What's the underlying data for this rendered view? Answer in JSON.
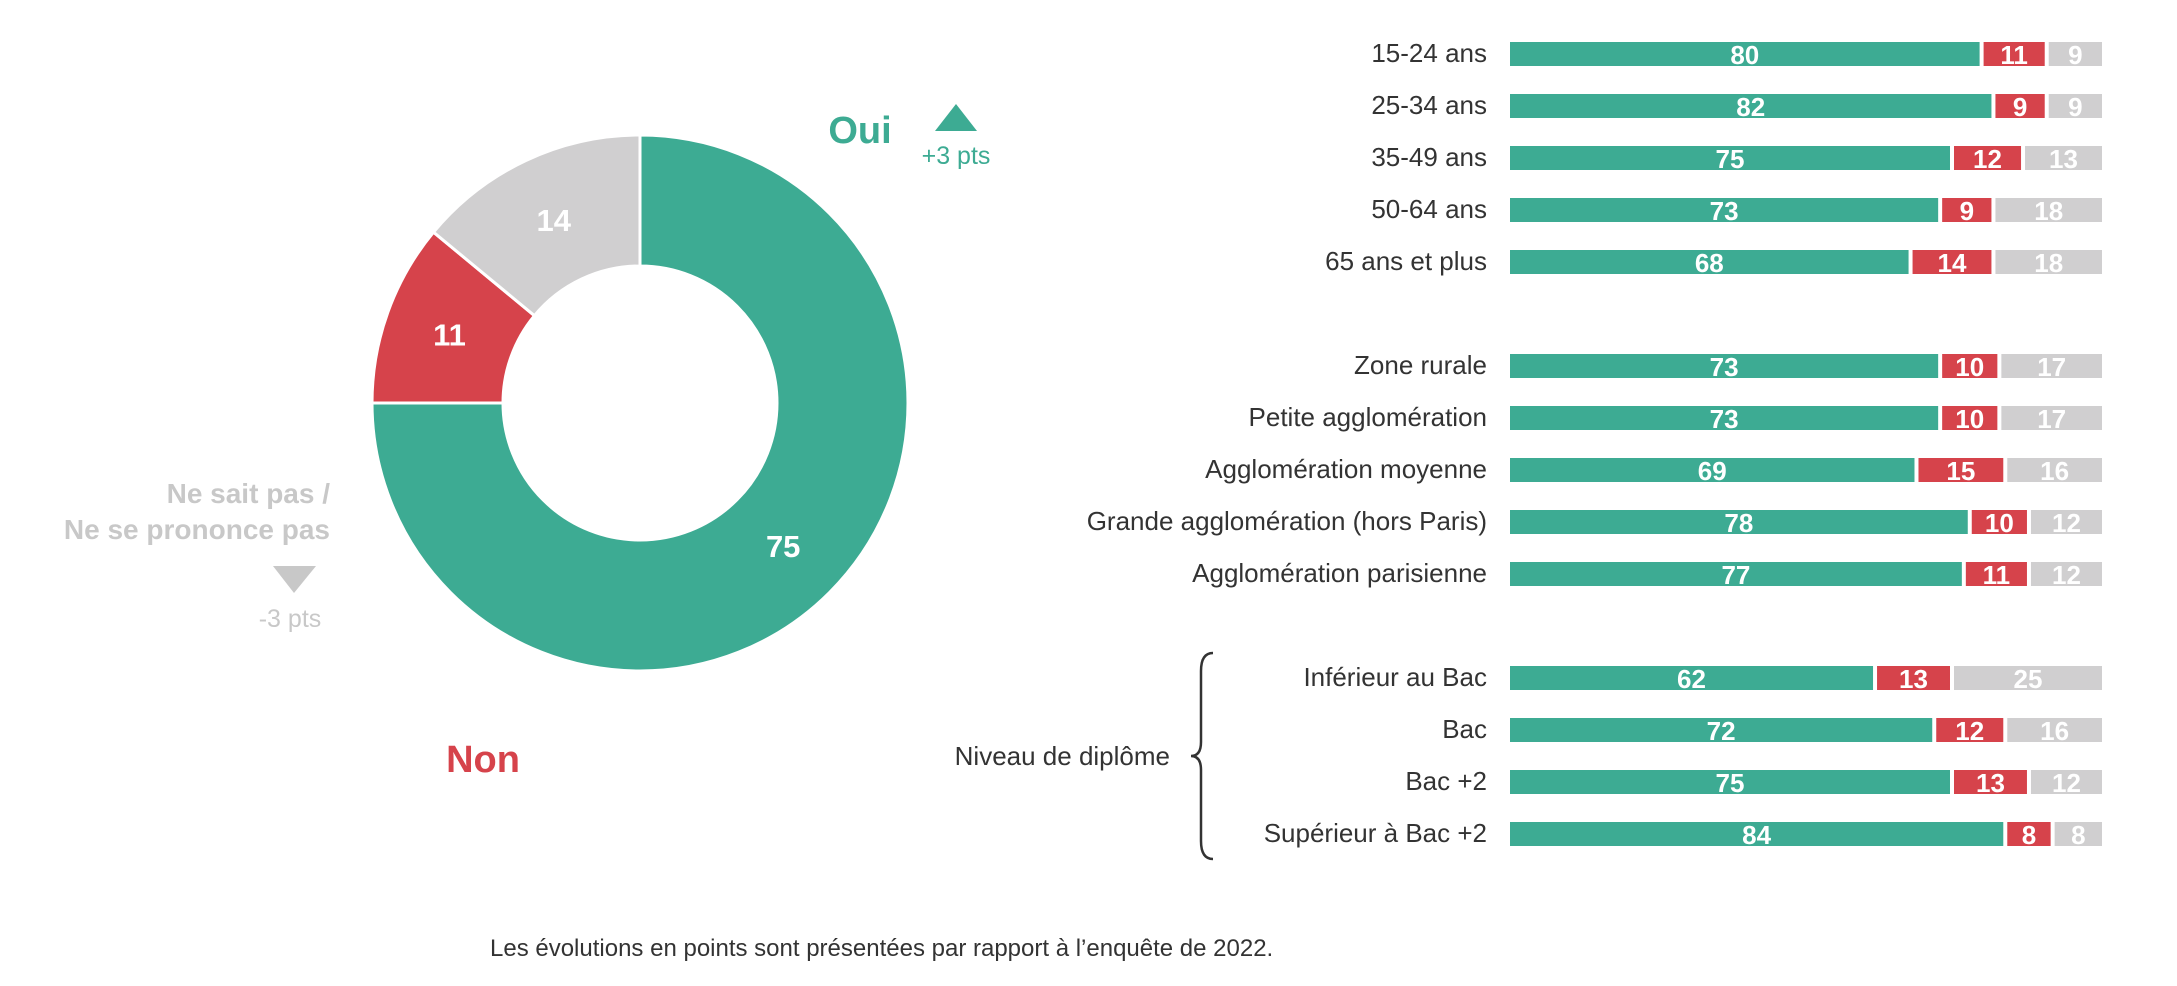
{
  "colors": {
    "yes": "#3dab93",
    "no": "#d6434b",
    "dk": "#d0cfd0",
    "dk_text": "#c8c8c8",
    "text": "#333333"
  },
  "chart_data": [
    {
      "type": "pie",
      "variant": "donut",
      "slices": [
        {
          "key": "yes",
          "value": 75
        },
        {
          "key": "no",
          "value": 11
        },
        {
          "key": "dk",
          "value": 14
        }
      ],
      "labels": {
        "yes": "Oui",
        "no": "Non",
        "dk_line1": "Ne sait pas /",
        "dk_line2": "Ne se prononce pas"
      },
      "evolution": {
        "yes": {
          "direction": "up",
          "text": "+3 pts"
        },
        "dk": {
          "direction": "down",
          "text": "-3 pts"
        }
      }
    },
    {
      "type": "bar",
      "orientation": "horizontal",
      "stacked": true,
      "series_keys": [
        "yes",
        "no",
        "dk"
      ],
      "groups": [
        {
          "label": "",
          "rows": [
            {
              "label": "15-24 ans",
              "values": [
                80,
                11,
                9
              ]
            },
            {
              "label": "25-34 ans",
              "values": [
                82,
                9,
                9
              ]
            },
            {
              "label": "35-49 ans",
              "values": [
                75,
                12,
                13
              ]
            },
            {
              "label": "50-64 ans",
              "values": [
                73,
                9,
                18
              ]
            },
            {
              "label": "65 ans et plus",
              "values": [
                68,
                14,
                18
              ]
            }
          ]
        },
        {
          "label": "",
          "rows": [
            {
              "label": "Zone rurale",
              "values": [
                73,
                10,
                17
              ]
            },
            {
              "label": "Petite agglomération",
              "values": [
                73,
                10,
                17
              ]
            },
            {
              "label": "Agglomération moyenne",
              "values": [
                69,
                15,
                16
              ]
            },
            {
              "label": "Grande agglomération (hors Paris)",
              "values": [
                78,
                10,
                12
              ]
            },
            {
              "label": "Agglomération parisienne",
              "values": [
                77,
                11,
                12
              ]
            }
          ]
        },
        {
          "label": "Niveau de diplôme",
          "rows": [
            {
              "label": "Inférieur au Bac",
              "values": [
                62,
                13,
                25
              ]
            },
            {
              "label": "Bac",
              "values": [
                72,
                12,
                16
              ]
            },
            {
              "label": "Bac +2",
              "values": [
                75,
                13,
                12
              ]
            },
            {
              "label": "Supérieur à Bac +2",
              "values": [
                84,
                8,
                8
              ]
            }
          ]
        }
      ]
    }
  ],
  "footnote": "Les évolutions en points sont présentées par rapport à l’enquête de 2022."
}
